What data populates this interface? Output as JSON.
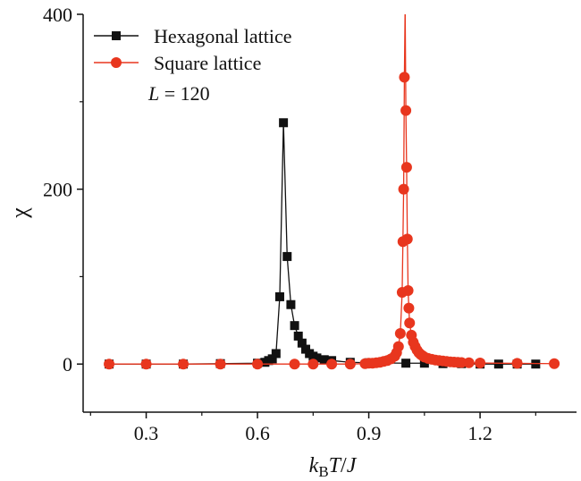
{
  "chart_data": {
    "type": "line",
    "xlabel_parts": {
      "k": "k",
      "sub": "B",
      "T": "T",
      "slash": "/",
      "J": "J"
    },
    "ylabel": "χ",
    "xlim": [
      0.13,
      1.46
    ],
    "ylim": [
      -55,
      400
    ],
    "xticks": [
      0.3,
      0.6,
      0.9,
      1.2
    ],
    "xtick_labels": [
      "0.3",
      "0.6",
      "0.9",
      "1.2"
    ],
    "xminor": [
      0.15,
      0.45,
      0.75,
      1.05,
      1.35
    ],
    "yticks": [
      0,
      200,
      400
    ],
    "ytick_labels": [
      "0",
      "200",
      "400"
    ],
    "yminor": [
      100,
      300
    ],
    "annotation": {
      "italic": "L",
      "rest": " = 120"
    },
    "legend_position": "top-left",
    "colors": {
      "hexagonal": "#111111",
      "square": "#e8361e"
    },
    "series": [
      {
        "name": "Hexagonal lattice",
        "marker": "square",
        "x": [
          0.2,
          0.3,
          0.4,
          0.5,
          0.6,
          0.62,
          0.63,
          0.64,
          0.65,
          0.66,
          0.67,
          0.68,
          0.69,
          0.7,
          0.71,
          0.72,
          0.73,
          0.74,
          0.75,
          0.76,
          0.78,
          0.8,
          0.85,
          0.9,
          1.0,
          1.05,
          1.1,
          1.15,
          1.2,
          1.25,
          1.3,
          1.35
        ],
        "y": [
          0,
          0,
          0,
          0.5,
          1,
          2,
          4,
          6,
          12,
          77,
          276,
          123,
          68,
          44,
          32,
          24,
          17,
          12,
          9,
          7,
          5,
          4,
          2,
          1.5,
          1,
          1,
          0.5,
          0.5,
          0,
          0,
          0,
          0
        ]
      },
      {
        "name": "Square lattice",
        "marker": "circle",
        "x": [
          0.2,
          0.3,
          0.4,
          0.5,
          0.6,
          0.7,
          0.75,
          0.8,
          0.85,
          0.89,
          0.9,
          0.91,
          0.92,
          0.93,
          0.94,
          0.95,
          0.96,
          0.97,
          0.975,
          0.98,
          0.985,
          0.99,
          0.992,
          0.994,
          0.996,
          0.998,
          1.0,
          1.002,
          1.004,
          1.006,
          1.008,
          1.01,
          1.015,
          1.02,
          1.025,
          1.03,
          1.035,
          1.04,
          1.045,
          1.05,
          1.06,
          1.07,
          1.08,
          1.09,
          1.1,
          1.11,
          1.12,
          1.13,
          1.14,
          1.15,
          1.17,
          1.2,
          1.3,
          1.4
        ],
        "y": [
          0,
          0,
          0,
          0,
          0,
          0,
          0,
          0,
          0,
          0.5,
          1,
          1,
          1.5,
          2,
          3,
          4,
          6,
          9,
          13,
          20,
          35,
          82,
          140,
          200,
          328,
          410,
          290,
          225,
          143,
          84,
          64,
          47,
          33,
          25,
          20,
          16,
          13,
          11,
          9.5,
          8,
          6.5,
          5.5,
          4.5,
          4,
          3.5,
          3,
          2.5,
          2.2,
          2,
          1.8,
          1.5,
          1.2,
          0.8,
          0.5
        ]
      }
    ]
  }
}
